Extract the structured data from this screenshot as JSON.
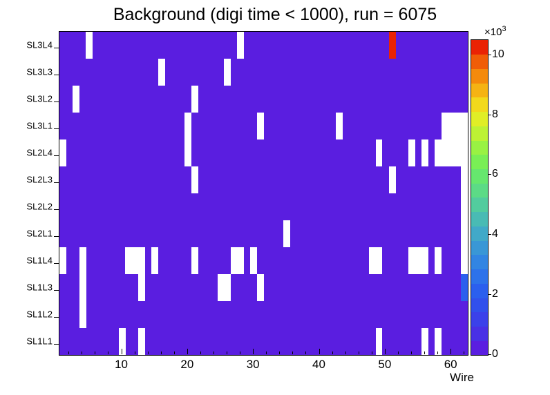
{
  "canvas_background": "#ffffff",
  "chart_data": {
    "type": "heatmap",
    "title": "Background (digi time < 1000), run = 6075",
    "xlabel": "Wire",
    "x_min": 0.5,
    "x_max": 62.5,
    "x_ticks": [
      10,
      20,
      30,
      40,
      50,
      60
    ],
    "rows_bottom_to_top": [
      "SL1L1",
      "SL1L2",
      "SL1L3",
      "SL1L4",
      "SL2L1",
      "SL2L2",
      "SL2L3",
      "SL2L4",
      "SL3L1",
      "SL3L2",
      "SL3L3",
      "SL3L4"
    ],
    "base_value": 400,
    "z_max": 10500,
    "empty_color": "#ffffff",
    "empty_cells": {
      "SL3L4": [
        5,
        28
      ],
      "SL3L3": [
        16,
        26
      ],
      "SL3L2": [
        3,
        21
      ],
      "SL3L1": [
        20,
        31,
        43,
        59,
        60,
        61,
        62
      ],
      "SL2L4": [
        1,
        20,
        49,
        54,
        56,
        58,
        59,
        60,
        61,
        62
      ],
      "SL2L3": [
        21,
        51,
        62
      ],
      "SL2L2": [
        62
      ],
      "SL2L1": [
        35,
        62
      ],
      "SL1L4": [
        1,
        4,
        11,
        12,
        13,
        15,
        21,
        27,
        28,
        30,
        48,
        49,
        54,
        55,
        56,
        58,
        62
      ],
      "SL1L3": [
        4,
        13,
        25,
        26,
        31
      ],
      "SL1L2": [
        4
      ],
      "SL1L1": [
        10,
        13,
        49,
        56,
        58
      ]
    },
    "hot_cells": [
      {
        "row": "SL3L4",
        "wire": 51,
        "value": 10400
      },
      {
        "row": "SL1L3",
        "wire": 62,
        "value": 2200
      }
    ],
    "colorbar": {
      "ticks": [
        0,
        2,
        4,
        6,
        8,
        10
      ],
      "multiplier": "×10",
      "exponent": "3",
      "palette": [
        "#5a1ee0",
        "#4930e5",
        "#3b41ea",
        "#3150ec",
        "#2b5fee",
        "#2d72ea",
        "#3285e2",
        "#3997d6",
        "#41a9c8",
        "#49bbb4",
        "#52cc9e",
        "#5cdb86",
        "#66e76e",
        "#79ef55",
        "#99f243",
        "#bdf234",
        "#e0ee26",
        "#f2d91c",
        "#f5b313",
        "#f48a0c",
        "#f05d07",
        "#ea2304"
      ]
    }
  }
}
